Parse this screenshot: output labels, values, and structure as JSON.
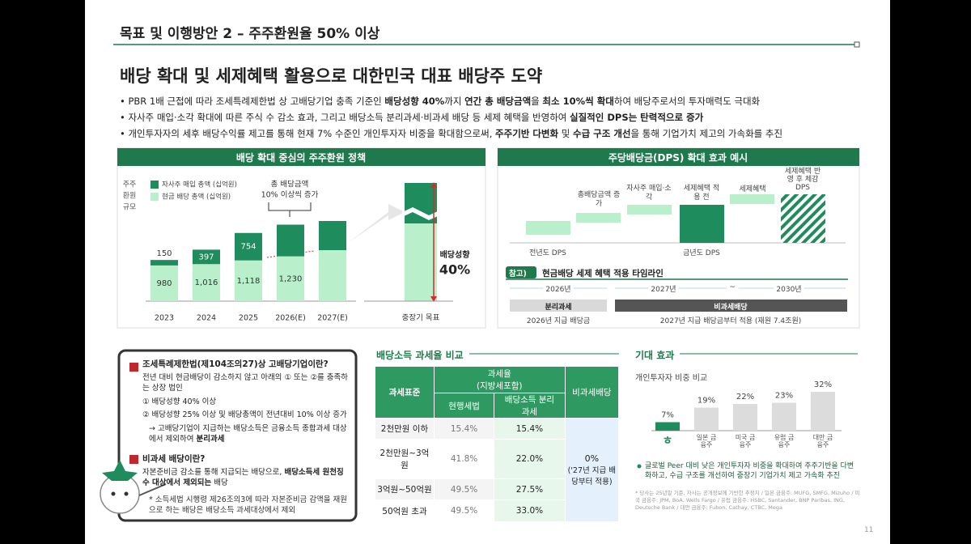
{
  "header": {
    "section": "목표 및 이행방안 2 – 주주환원율 50% 이상",
    "page_number": "11"
  },
  "headline": "배당 확대 및 세제혜택 활용으로 대한민국 대표 배당주 도약",
  "bullets": [
    [
      "PBR 1배 근접에 따라 조세특례제한법 상 고배당기업 충족 기준인 ",
      "배당성향 40%",
      "까지 ",
      "연간 총 배당금액",
      "을 ",
      "최소 10%씩 확대",
      "하여 배당주로서의 투자매력도 극대화"
    ],
    [
      "자사주 매입·소각 확대에 따른 주식 수 감소 효과, 그리고 배당소득 분리과세·비과세 배당 등 세제 혜택을 반영하여 ",
      "실질적인 DPS는 탄력적으로 증가"
    ],
    [
      "개인투자자의 세후 배당수익률 제고를 통해 현재 7% 수준인 개인투자자 비중을 확대함으로써, ",
      "주주기반 다변화",
      " 및 ",
      "수급 구조 개선",
      "을 통해 기업가치 제고의 가속화를 추진"
    ]
  ],
  "chart_data": [
    {
      "type": "stacked_bar",
      "title": "배당 확대 중심의 주주환원 정책",
      "y_label": [
        "주주",
        "환원",
        "규모"
      ],
      "categories": [
        "2023",
        "2024",
        "2025",
        "2026(E)",
        "2027(E)",
        "중장기 목표"
      ],
      "series": [
        {
          "name": "현금 배당 총액 (십억원)",
          "color": "#b9f0cb",
          "values": [
            980,
            1016,
            1118,
            1230,
            1400,
            null
          ],
          "value_labels": [
            "980",
            "1,016",
            "1,118",
            "1,230",
            null,
            null
          ]
        },
        {
          "name": "자사주 매입 총액 (십억원)",
          "color": "#1e8c5c",
          "values": [
            150,
            397,
            754,
            870,
            800,
            null
          ],
          "value_labels": [
            "150",
            "397",
            "754",
            null,
            null,
            null
          ]
        }
      ],
      "annotation": [
        "총 배당금액",
        "10% 이상씩 증가"
      ],
      "payout_label": "배당성향",
      "payout_value": "40%"
    },
    {
      "type": "bar",
      "title": "개인투자자 비중 비교",
      "categories": [
        null,
        "일본 금융주",
        "미국 금융주",
        "유럽 금융주",
        "대만 금융주"
      ],
      "values": [
        7,
        19,
        22,
        23,
        32
      ],
      "value_labels": [
        "7%",
        "19%",
        "22%",
        "23%",
        "32%"
      ],
      "colors": [
        "#1e8c5c",
        "#dcdcdc",
        "#dcdcdc",
        "#dcdcdc",
        "#dcdcdc"
      ]
    }
  ],
  "dps_panel": {
    "title": "주당배당금(DPS) 확대 효과 예시",
    "steps": [
      "총배당금액 증가",
      "자사주 매입·소각",
      "세제혜택 적용 전",
      "세제혜택",
      "세제혜택 반영 후 체감 DPS"
    ],
    "prev_dps": "전년도 DPS",
    "curr_dps": "금년도 DPS",
    "timeline_badge": "참고)",
    "timeline_title": "현금배당 세제 혜택 적용 타임라인",
    "years": [
      "2026년",
      "2027년",
      "~",
      "2030년"
    ],
    "phases": [
      "분리과세",
      "비과세배당"
    ],
    "phase_notes": [
      "2026년 지급 배당금",
      "2027년 지급 배당금부터 적용 (재원 7.4조원)"
    ]
  },
  "info_box": {
    "q1": "조세특례제한법(제104조의27)상 고배당기업이란?",
    "q1_desc": "전년 대비 현금배당이 감소하지 않고 아래의 ① 또는 ②를 충족하는 상장 법인",
    "q1_items": [
      "① 배당성향 40% 이상",
      "② 배당성향 25% 이상 및 배당총액이 전년대비 10% 이상 증가"
    ],
    "q1_result": [
      "→ 고배당기업이 지급하는 배당소득은 금융소득 종합과세 대상에서 제외하여 ",
      "분리과세"
    ],
    "q2": "비과세 배당이란?",
    "q2_desc": [
      "자본준비금 감소를 통해 지급되는 배당으로, ",
      "배당소득세 원천징수 대상에서 제외되는",
      " 배당"
    ],
    "q2_note": "* 소득세법 시행령 제26조의3에 따라 자본준비금 감액을 재원으로 하는 배당은 배당소득 과세대상에서 제외"
  },
  "tax_table": {
    "title": "배당소득 과세율 비교",
    "head": {
      "base": "과세표준",
      "rate": "과세율",
      "rate_note": "(지방세포함)",
      "current": "현행세법",
      "separate": "배당소득 분리과세",
      "tax_free": "비과세배당"
    },
    "rows": [
      [
        "2천만원 이하",
        "15.4%",
        "15.4%"
      ],
      [
        "2천만원~3억원",
        "41.8%",
        "22.0%"
      ],
      [
        "3억원~50억원",
        "49.5%",
        "27.5%"
      ],
      [
        "50억원 초과",
        "49.5%",
        "33.0%"
      ]
    ],
    "tax_free_value": "0%",
    "tax_free_note": "('27년 지급 배당부터 적용)"
  },
  "effect": {
    "title": "기대 효과",
    "note": "글로벌 Peer 대비 낮은 개인투자자 비중을 확대하여 주주기반을 다변화하고, 수급 구조를 개선하여 중장기 기업가치 제고 가속화 추진",
    "footnote": "* 당사는 25년말 기준, 자사는 공개정보에 기반한 추정치 / 일본 금융주: MUFG, SMFG, Mizuho / 미국 금융주: JPM, BoA, Wells Fargo / 유럽 금융주: HSBC, Santander, BNP Paribas, ING, Deutsche Bank / 대만 금융주: Fubon, Cathay, CTBC, Mega"
  }
}
